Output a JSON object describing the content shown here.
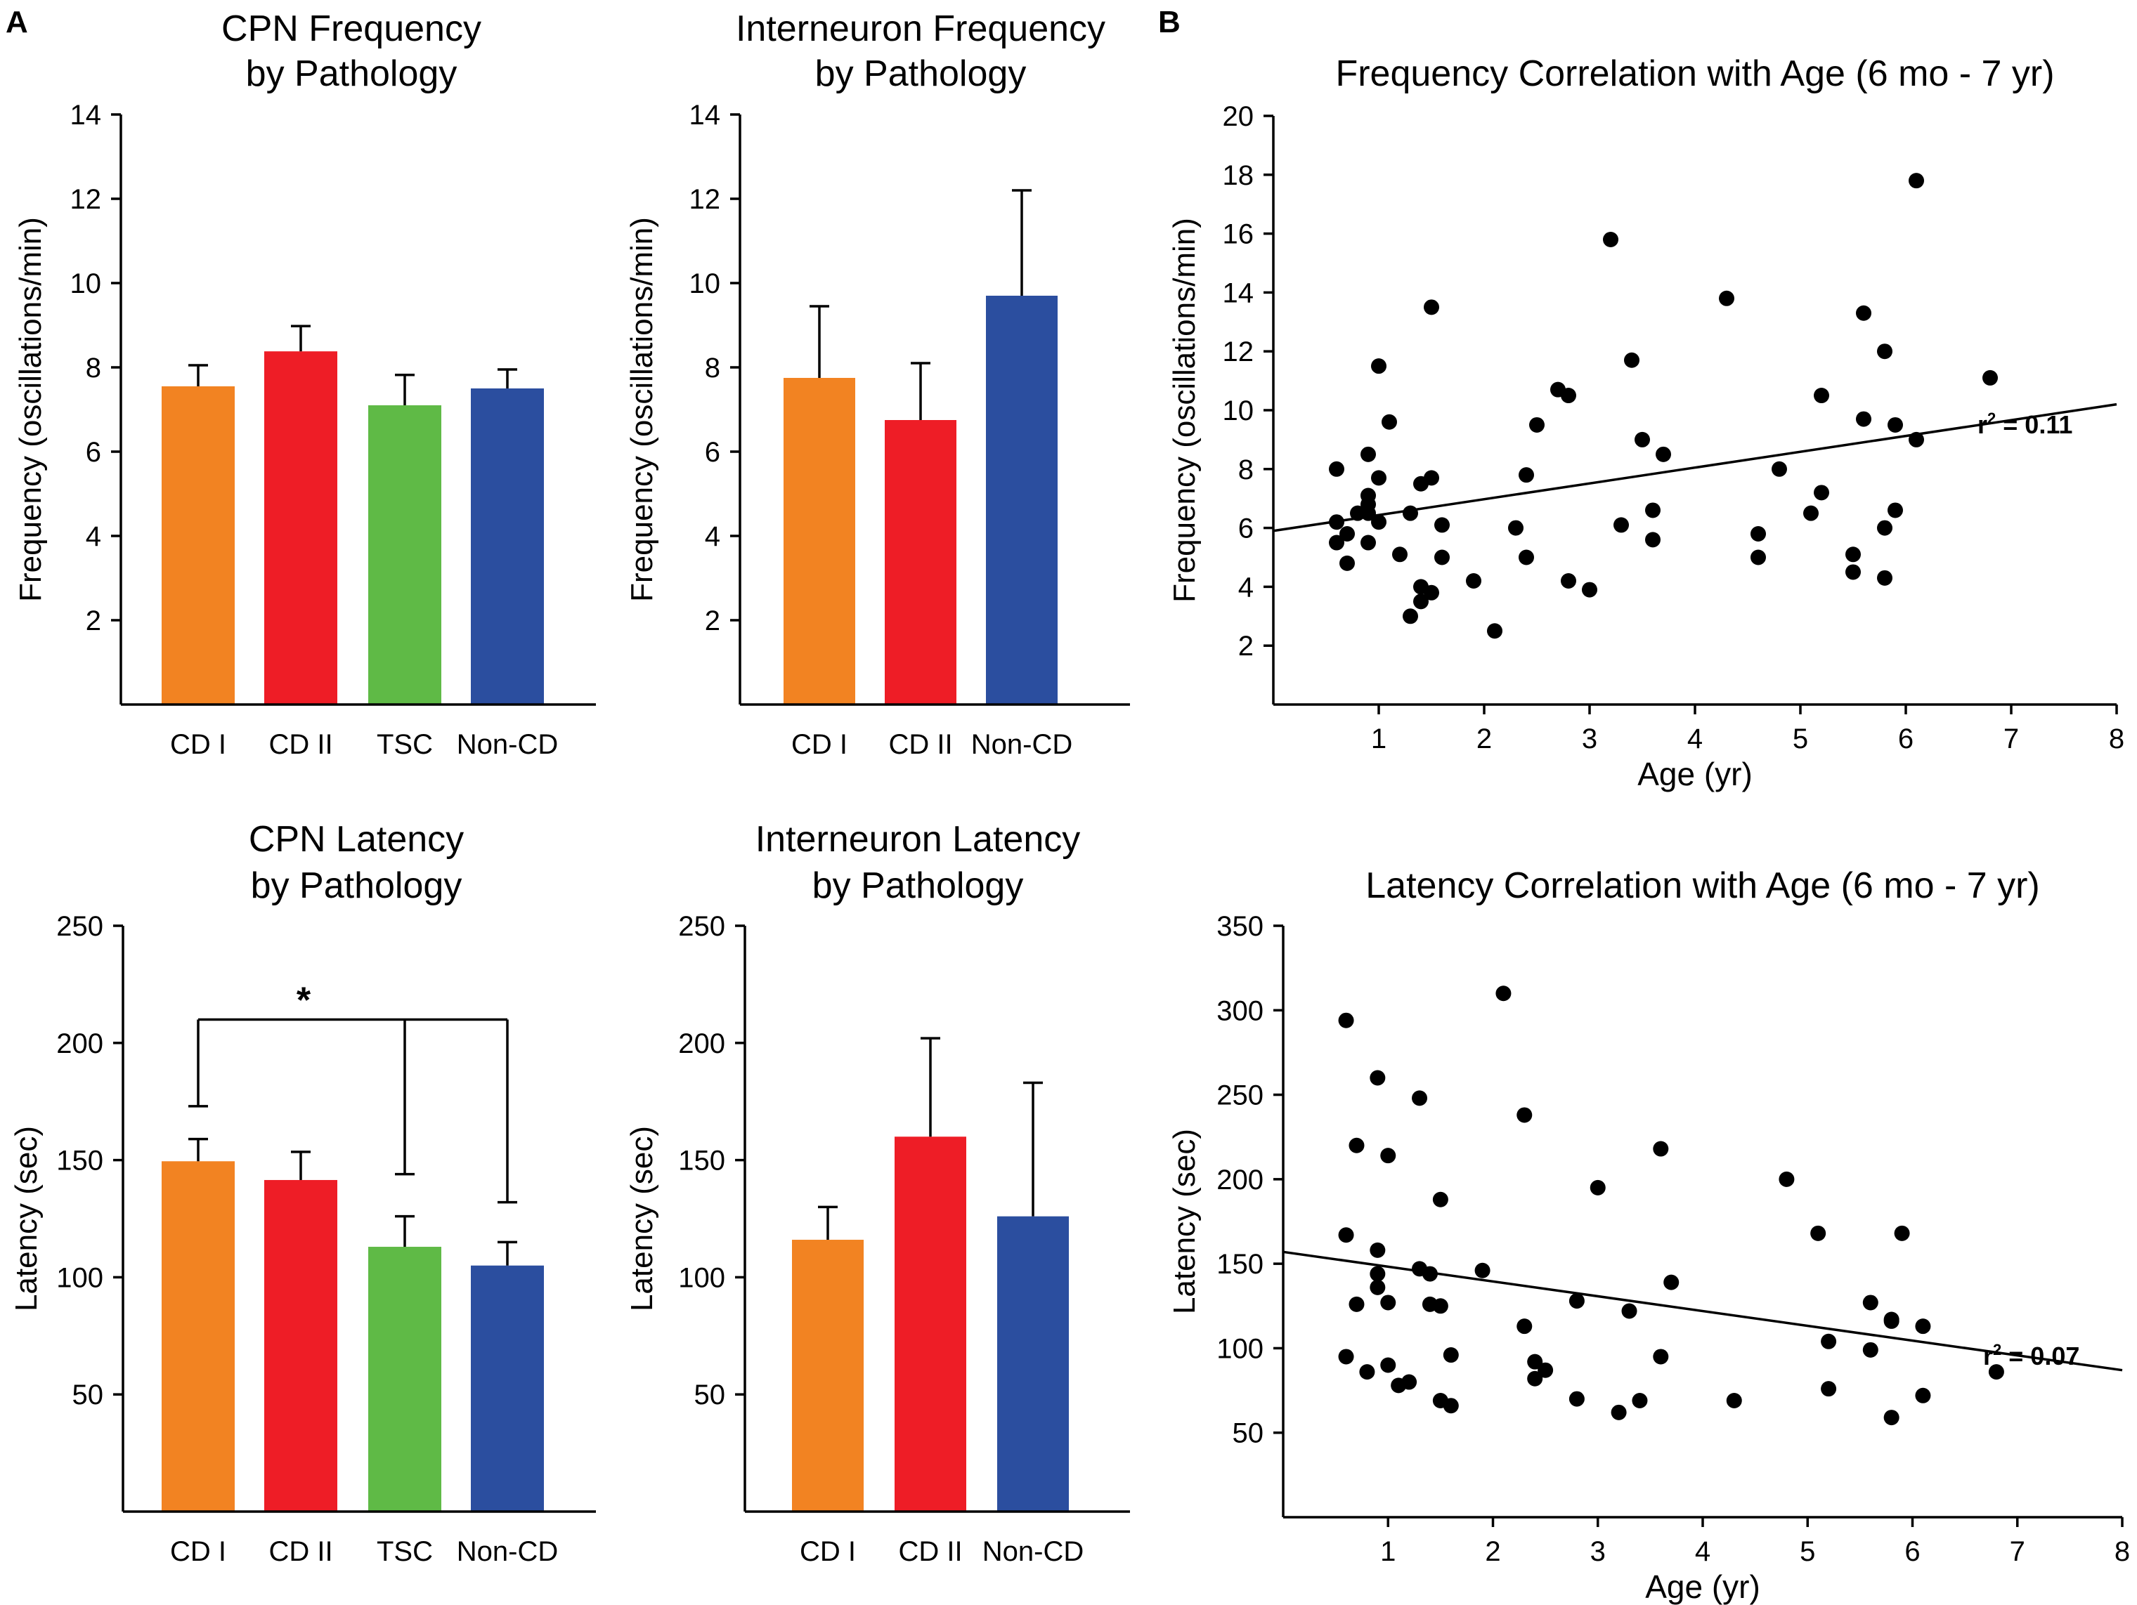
{
  "panel_labels": {
    "a": "A",
    "b": "B"
  },
  "colors": {
    "cd1": "#F28322",
    "cd2": "#EE1D26",
    "tsc": "#5FBA46",
    "noncd": "#2B4E9F",
    "axis": "#000000",
    "point": "#000000"
  },
  "chart_data": [
    {
      "id": "cpn_freq",
      "type": "bar",
      "title_lines": [
        "CPN Frequency",
        "by Pathology"
      ],
      "ylabel": "Frequency (oscillations/min)",
      "xlabel": "",
      "ylim": [
        0,
        14
      ],
      "yticks": [
        "2",
        "4",
        "6",
        "8",
        "10",
        "12",
        "14"
      ],
      "categories": [
        "CD I",
        "CD II",
        "TSC",
        "Non-CD"
      ],
      "values": [
        7.55,
        8.38,
        7.1,
        7.5
      ],
      "errors": [
        0.5,
        0.6,
        0.72,
        0.45
      ],
      "color_keys": [
        "cd1",
        "cd2",
        "tsc",
        "noncd"
      ]
    },
    {
      "id": "int_freq",
      "type": "bar",
      "title_lines": [
        "Interneuron Frequency",
        "by Pathology"
      ],
      "ylabel": "Frequency (oscillations/min)",
      "xlabel": "",
      "ylim": [
        0,
        14
      ],
      "yticks": [
        "2",
        "4",
        "6",
        "8",
        "10",
        "12",
        "14"
      ],
      "categories": [
        "CD I",
        "CD II",
        "Non-CD"
      ],
      "values": [
        7.75,
        6.75,
        9.7
      ],
      "errors": [
        1.7,
        1.35,
        2.5
      ],
      "color_keys": [
        "cd1",
        "cd2",
        "noncd"
      ]
    },
    {
      "id": "cpn_lat",
      "type": "bar",
      "title_lines": [
        "CPN Latency",
        "by Pathology"
      ],
      "ylabel": "Latency (sec)",
      "xlabel": "",
      "ylim": [
        0,
        250
      ],
      "yticks": [
        "50",
        "100",
        "150",
        "200",
        "250"
      ],
      "categories": [
        "CD I",
        "CD II",
        "TSC",
        "Non-CD"
      ],
      "values": [
        149.5,
        141.5,
        113,
        105
      ],
      "errors": [
        9.5,
        12,
        13,
        10
      ],
      "color_keys": [
        "cd1",
        "cd2",
        "tsc",
        "noncd"
      ],
      "significance": {
        "label": "*",
        "bracket_value": 210,
        "drops": [
          {
            "category": "CD I",
            "to_value": 173
          },
          {
            "category": "TSC",
            "to_value": 144
          },
          {
            "category": "Non-CD",
            "to_value": 132
          }
        ]
      }
    },
    {
      "id": "int_lat",
      "type": "bar",
      "title_lines": [
        "Interneuron Latency",
        "by Pathology"
      ],
      "ylabel": "Latency (sec)",
      "xlabel": "",
      "ylim": [
        0,
        250
      ],
      "yticks": [
        "50",
        "100",
        "150",
        "200",
        "250"
      ],
      "categories": [
        "CD I",
        "CD II",
        "Non-CD"
      ],
      "values": [
        116,
        160,
        126
      ],
      "errors": [
        14,
        42,
        57
      ],
      "color_keys": [
        "cd1",
        "cd2",
        "noncd"
      ]
    },
    {
      "id": "freq_age",
      "type": "scatter",
      "title": "Frequency Correlation with Age (6 mo - 7 yr)",
      "xlabel": "Age (yr)",
      "ylabel": "Frequency (oscillations/min)",
      "xlim": [
        0,
        8
      ],
      "ylim": [
        0,
        20
      ],
      "xticks": [
        "1",
        "2",
        "3",
        "4",
        "5",
        "6",
        "7",
        "8"
      ],
      "yticks": [
        "2",
        "4",
        "6",
        "8",
        "10",
        "12",
        "14",
        "16",
        "18",
        "20"
      ],
      "annotation": {
        "base": "r",
        "sup": "2",
        "rest": " = 0.11"
      },
      "fit": {
        "x0": 0,
        "y0": 5.9,
        "x1": 8,
        "y1": 10.2
      },
      "points": [
        [
          0.6,
          8.0
        ],
        [
          0.6,
          6.2
        ],
        [
          0.6,
          5.5
        ],
        [
          0.7,
          5.8
        ],
        [
          0.7,
          4.8
        ],
        [
          0.8,
          6.5
        ],
        [
          0.9,
          8.5
        ],
        [
          0.9,
          7.1
        ],
        [
          0.9,
          6.8
        ],
        [
          0.9,
          6.5
        ],
        [
          0.9,
          5.5
        ],
        [
          1.0,
          11.5
        ],
        [
          1.0,
          7.7
        ],
        [
          1.0,
          6.2
        ],
        [
          1.1,
          9.6
        ],
        [
          1.2,
          5.1
        ],
        [
          1.3,
          6.5
        ],
        [
          1.3,
          3.0
        ],
        [
          1.4,
          7.5
        ],
        [
          1.4,
          4.0
        ],
        [
          1.4,
          3.5
        ],
        [
          1.5,
          13.5
        ],
        [
          1.5,
          7.7
        ],
        [
          1.5,
          3.8
        ],
        [
          1.6,
          6.1
        ],
        [
          1.6,
          5.0
        ],
        [
          1.9,
          4.2
        ],
        [
          2.1,
          2.5
        ],
        [
          2.3,
          6.0
        ],
        [
          2.4,
          7.8
        ],
        [
          2.4,
          5.0
        ],
        [
          2.5,
          9.5
        ],
        [
          2.7,
          10.7
        ],
        [
          2.8,
          10.5
        ],
        [
          2.8,
          4.2
        ],
        [
          3.0,
          3.9
        ],
        [
          3.2,
          15.8
        ],
        [
          3.3,
          6.1
        ],
        [
          3.4,
          11.7
        ],
        [
          3.5,
          9.0
        ],
        [
          3.6,
          6.6
        ],
        [
          3.6,
          5.6
        ],
        [
          3.7,
          8.5
        ],
        [
          4.3,
          13.8
        ],
        [
          4.6,
          5.8
        ],
        [
          4.6,
          5.0
        ],
        [
          4.8,
          8.0
        ],
        [
          5.1,
          6.5
        ],
        [
          5.2,
          10.5
        ],
        [
          5.2,
          7.2
        ],
        [
          5.5,
          5.1
        ],
        [
          5.5,
          4.5
        ],
        [
          5.6,
          13.3
        ],
        [
          5.6,
          9.7
        ],
        [
          5.8,
          12.0
        ],
        [
          5.8,
          6.0
        ],
        [
          5.8,
          4.3
        ],
        [
          5.9,
          9.5
        ],
        [
          5.9,
          6.6
        ],
        [
          6.1,
          17.8
        ],
        [
          6.1,
          9.0
        ],
        [
          6.8,
          11.1
        ]
      ]
    },
    {
      "id": "lat_age",
      "type": "scatter",
      "title": "Latency Correlation with Age (6 mo - 7 yr)",
      "xlabel": "Age (yr)",
      "ylabel": "Latency (sec)",
      "xlim": [
        0,
        8
      ],
      "ylim": [
        0,
        350
      ],
      "xticks": [
        "1",
        "2",
        "3",
        "4",
        "5",
        "6",
        "7",
        "8"
      ],
      "yticks": [
        "50",
        "100",
        "150",
        "200",
        "250",
        "300",
        "350"
      ],
      "annotation": {
        "base": "r",
        "sup": "2",
        "rest": " = 0.07"
      },
      "fit": {
        "x0": 0,
        "y0": 157,
        "x1": 8,
        "y1": 87
      },
      "points": [
        [
          0.6,
          294
        ],
        [
          0.6,
          167
        ],
        [
          0.6,
          95
        ],
        [
          0.7,
          220
        ],
        [
          0.7,
          126
        ],
        [
          0.8,
          86
        ],
        [
          0.9,
          260
        ],
        [
          0.9,
          158
        ],
        [
          0.9,
          144
        ],
        [
          0.9,
          136
        ],
        [
          1.0,
          214
        ],
        [
          1.0,
          127
        ],
        [
          1.0,
          90
        ],
        [
          1.1,
          78
        ],
        [
          1.2,
          80
        ],
        [
          1.3,
          248
        ],
        [
          1.3,
          147
        ],
        [
          1.4,
          144
        ],
        [
          1.4,
          126
        ],
        [
          1.5,
          188
        ],
        [
          1.5,
          125
        ],
        [
          1.5,
          69
        ],
        [
          1.6,
          66
        ],
        [
          1.6,
          96
        ],
        [
          1.9,
          146
        ],
        [
          2.1,
          310
        ],
        [
          2.3,
          238
        ],
        [
          2.3,
          113
        ],
        [
          2.4,
          92
        ],
        [
          2.4,
          82
        ],
        [
          2.5,
          87
        ],
        [
          2.8,
          128
        ],
        [
          2.8,
          70
        ],
        [
          3.0,
          195
        ],
        [
          3.2,
          62
        ],
        [
          3.3,
          122
        ],
        [
          3.4,
          69
        ],
        [
          3.6,
          218
        ],
        [
          3.6,
          95
        ],
        [
          3.7,
          139
        ],
        [
          4.3,
          69
        ],
        [
          4.8,
          200
        ],
        [
          5.1,
          168
        ],
        [
          5.2,
          104
        ],
        [
          5.2,
          76
        ],
        [
          5.6,
          127
        ],
        [
          5.6,
          99
        ],
        [
          5.8,
          117
        ],
        [
          5.8,
          116
        ],
        [
          5.8,
          59
        ],
        [
          5.9,
          168
        ],
        [
          6.1,
          113
        ],
        [
          6.1,
          72
        ],
        [
          6.8,
          86
        ]
      ]
    }
  ]
}
